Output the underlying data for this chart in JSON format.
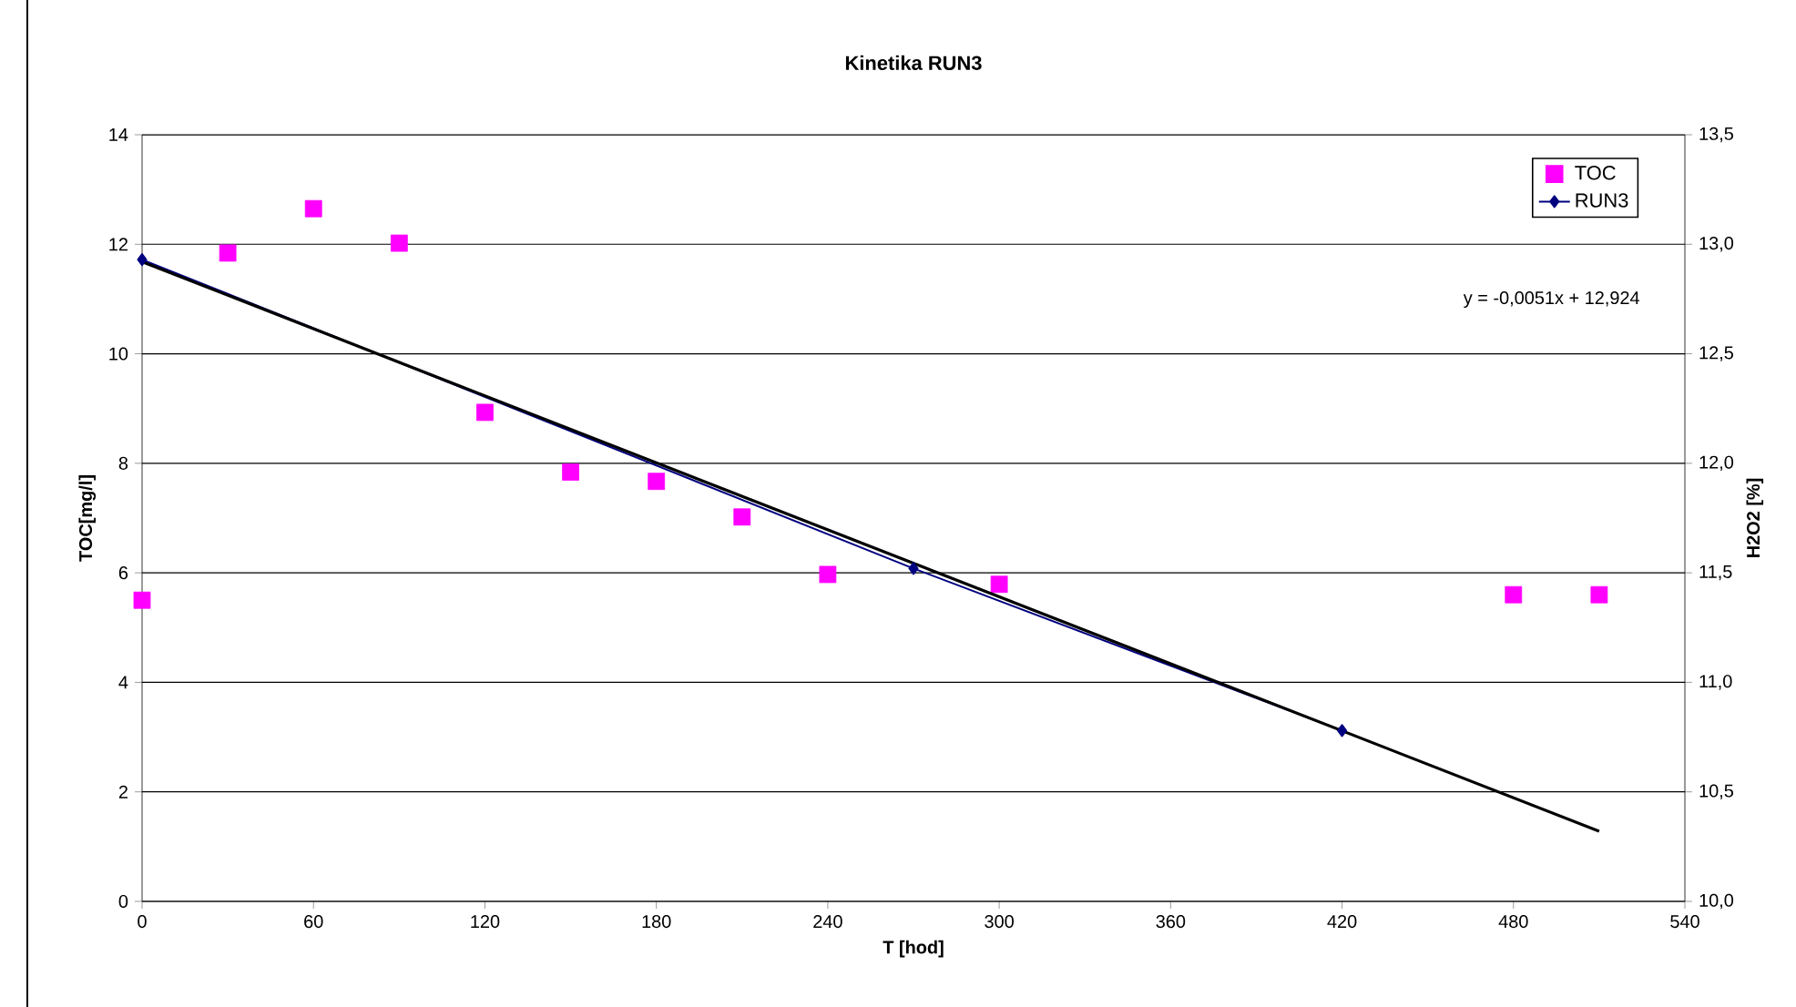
{
  "chart_data": {
    "type": "scatter",
    "title": "Kinetika RUN3",
    "xlabel": "T [hod]",
    "ylabel": "TOC[mg/l]",
    "y2label": "H2O2 [%]",
    "xlim": [
      0,
      540
    ],
    "xticks": [
      0,
      60,
      120,
      180,
      240,
      300,
      360,
      420,
      480,
      540
    ],
    "ylim": [
      0,
      14
    ],
    "yticks": [
      0,
      2,
      4,
      6,
      8,
      10,
      12,
      14
    ],
    "y2lim": [
      10,
      13.5
    ],
    "y2ticks": [
      {
        "value": 10,
        "label": "10,0"
      },
      {
        "value": 10.5,
        "label": "10,5"
      },
      {
        "value": 11,
        "label": "11,0"
      },
      {
        "value": 11.5,
        "label": "11,5"
      },
      {
        "value": 12,
        "label": "12,0"
      },
      {
        "value": 12.5,
        "label": "12,5"
      },
      {
        "value": 13,
        "label": "13,0"
      },
      {
        "value": 13.5,
        "label": "13,5"
      }
    ],
    "grid": "y",
    "legend": "top right",
    "annotations": [
      "y = -0,0051x + 12,924"
    ],
    "series": [
      {
        "name": "TOC",
        "marker": "square",
        "color": "#ff00ff",
        "x": [
          0,
          30,
          60,
          90,
          120,
          150,
          180,
          210,
          240,
          300,
          480,
          510
        ],
        "values": [
          5.5,
          11.84,
          12.65,
          12.02,
          8.93,
          7.84,
          7.67,
          7.02,
          5.97,
          5.79,
          5.6,
          5.6
        ]
      },
      {
        "name": "RUN3",
        "type": "line",
        "axis": "y2",
        "marker": "diamond",
        "color": "#000080",
        "x": [
          0,
          270,
          420
        ],
        "values": [
          12.93,
          11.52,
          10.78
        ]
      },
      {
        "type": "line",
        "axis": "y2",
        "marker": "none",
        "color": "#000000",
        "x": [
          0,
          510
        ],
        "values": [
          12.92,
          10.32
        ]
      }
    ]
  }
}
